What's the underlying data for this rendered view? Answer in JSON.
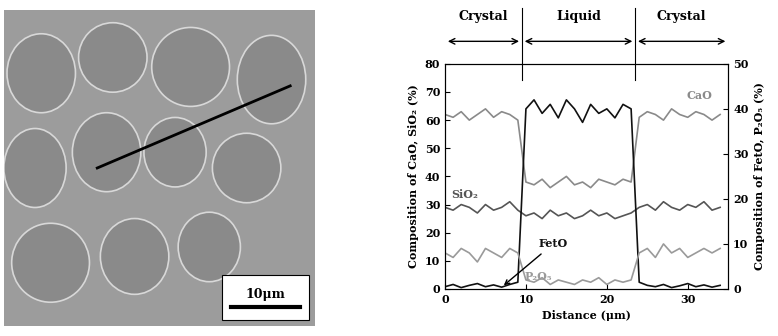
{
  "image": {
    "scale_bar": "10μm"
  },
  "chart_data": {
    "type": "line",
    "regions": [
      {
        "label": "Crystal",
        "start": 0,
        "end": 9.5
      },
      {
        "label": "Liquid",
        "start": 9.5,
        "end": 23.5
      },
      {
        "label": "Crystal",
        "start": 23.5,
        "end": 35
      }
    ],
    "xlabel": "Distance (μm)",
    "ylabel": "Composition of CaO, SiO₂ (%)",
    "y2label": "Composition of FetO, P₂O₅ (%)",
    "x": [
      0,
      1,
      2,
      3,
      4,
      5,
      6,
      7,
      8,
      9,
      10,
      11,
      12,
      13,
      14,
      15,
      16,
      17,
      18,
      19,
      20,
      21,
      22,
      23,
      24,
      25,
      26,
      27,
      28,
      29,
      30,
      31,
      32,
      33,
      34
    ],
    "series": [
      {
        "name": "CaO",
        "color": "#8a8a8a",
        "values": [
          62,
          61,
          63,
          60,
          62,
          64,
          61,
          63,
          62,
          60,
          38,
          37,
          39,
          36,
          38,
          40,
          37,
          38,
          36,
          39,
          38,
          37,
          39,
          38,
          61,
          63,
          62,
          60,
          64,
          62,
          61,
          63,
          62,
          60,
          62
        ]
      },
      {
        "name": "SiO₂",
        "color": "#555555",
        "values": [
          29,
          28,
          30,
          29,
          27,
          30,
          28,
          29,
          31,
          28,
          26,
          27,
          25,
          28,
          26,
          27,
          25,
          26,
          28,
          26,
          27,
          25,
          26,
          27,
          29,
          30,
          28,
          31,
          29,
          28,
          30,
          29,
          31,
          28,
          29
        ]
      },
      {
        "name": "FetO",
        "color": "#111111",
        "axis": "y2",
        "values": [
          0.5,
          1,
          0.3,
          0.8,
          1.2,
          0.5,
          0.9,
          0.4,
          1,
          1.5,
          40,
          42,
          39,
          41,
          38,
          42,
          40,
          37,
          41,
          39,
          40,
          38,
          41,
          40,
          1.5,
          0.8,
          0.5,
          1,
          0.3,
          0.7,
          1.2,
          0.5,
          0.9,
          0.4,
          0.8
        ]
      },
      {
        "name": "P₂O₅",
        "color": "#9a9a9a",
        "axis": "y2",
        "values": [
          8,
          7,
          9,
          8,
          6,
          9,
          8,
          7,
          9,
          8,
          2,
          1.5,
          2.5,
          1,
          2,
          1.5,
          1,
          2,
          1.5,
          2.5,
          1,
          2,
          1.5,
          2,
          8,
          9,
          7,
          10,
          8,
          9,
          7,
          8,
          9,
          8,
          9
        ]
      }
    ],
    "xlim": [
      0,
      35
    ],
    "xticks": [
      0,
      10,
      20,
      30
    ],
    "ylim": [
      0,
      80
    ],
    "yticks": [
      0,
      10,
      20,
      30,
      40,
      50,
      60,
      70,
      80
    ],
    "y2lim": [
      0,
      50
    ],
    "y2ticks": [
      0,
      10,
      20,
      30,
      40,
      50
    ]
  }
}
